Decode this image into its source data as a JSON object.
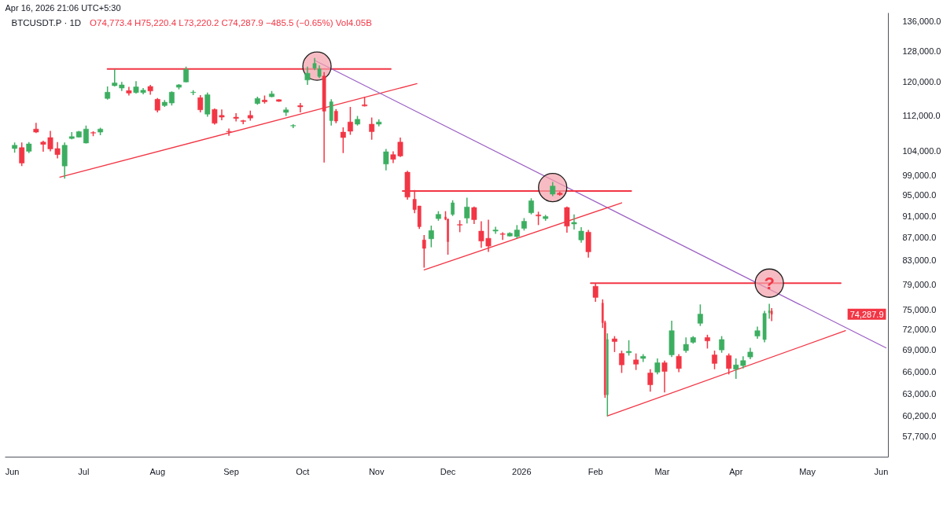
{
  "chart_data": {
    "type": "candlestick",
    "title": "BTCUSDT.P · 1D",
    "subtitle": "O74,773.4 H75,220.4 L73,220.2 C74,287.9 −485.5 (−0.65%) Vol4.05B",
    "annotations": [
      "Apr 16, 2026 21:06 UTC+5:30",
      {
        "text": "?",
        "x": "2026-04-15",
        "y": 79200
      },
      "74,287.9"
    ],
    "x": [
      "2025-06-02",
      "2025-06-05",
      "2025-06-08",
      "2025-06-11",
      "2025-06-14",
      "2025-06-17",
      "2025-06-20",
      "2025-06-23",
      "2025-06-26",
      "2025-06-29",
      "2025-07-02",
      "2025-07-05",
      "2025-07-08",
      "2025-07-11",
      "2025-07-14",
      "2025-07-17",
      "2025-07-20",
      "2025-07-23",
      "2025-07-26",
      "2025-07-29",
      "2025-08-01",
      "2025-08-04",
      "2025-08-07",
      "2025-08-10",
      "2025-08-13",
      "2025-08-16",
      "2025-08-19",
      "2025-08-22",
      "2025-08-25",
      "2025-08-28",
      "2025-08-31",
      "2025-09-03",
      "2025-09-06",
      "2025-09-09",
      "2025-09-12",
      "2025-09-15",
      "2025-09-18",
      "2025-09-21",
      "2025-09-24",
      "2025-09-27",
      "2025-09-30",
      "2025-10-03",
      "2025-10-06",
      "2025-10-08",
      "2025-10-10",
      "2025-10-13",
      "2025-10-15",
      "2025-10-18",
      "2025-10-21",
      "2025-10-24",
      "2025-10-27",
      "2025-10-30",
      "2025-11-02",
      "2025-11-05",
      "2025-11-08",
      "2025-11-11",
      "2025-11-14",
      "2025-11-17",
      "2025-11-19",
      "2025-11-21",
      "2025-11-24",
      "2025-11-27",
      "2025-11-30",
      "2025-12-01",
      "2025-12-03",
      "2025-12-06",
      "2025-12-09",
      "2025-12-12",
      "2025-12-15",
      "2025-12-18",
      "2025-12-21",
      "2025-12-24",
      "2025-12-27",
      "2025-12-30",
      "2026-01-02",
      "2026-01-05",
      "2026-01-08",
      "2026-01-11",
      "2026-01-14",
      "2026-01-17",
      "2026-01-20",
      "2026-01-23",
      "2026-01-26",
      "2026-01-29",
      "2026-02-01",
      "2026-02-04",
      "2026-02-05",
      "2026-02-06",
      "2026-02-09",
      "2026-02-12",
      "2026-02-15",
      "2026-02-18",
      "2026-02-21",
      "2026-02-24",
      "2026-02-27",
      "2026-03-02",
      "2026-03-05",
      "2026-03-08",
      "2026-03-11",
      "2026-03-14",
      "2026-03-17",
      "2026-03-20",
      "2026-03-23",
      "2026-03-26",
      "2026-03-29",
      "2026-04-01",
      "2026-04-04",
      "2026-04-07",
      "2026-04-10",
      "2026-04-13",
      "2026-04-15",
      "2026-04-16"
    ],
    "ohlc": [
      [
        104600,
        105900,
        103700,
        105300
      ],
      [
        104800,
        105900,
        100900,
        101500
      ],
      [
        104000,
        106000,
        103600,
        105600
      ],
      [
        108900,
        110300,
        108000,
        108200
      ],
      [
        106000,
        106300,
        103900,
        105500
      ],
      [
        107000,
        108500,
        104000,
        104500
      ],
      [
        104600,
        106000,
        102500,
        103300
      ],
      [
        100900,
        105900,
        98300,
        105300
      ],
      [
        106800,
        108200,
        106600,
        107200
      ],
      [
        107100,
        108500,
        107000,
        108300
      ],
      [
        105800,
        109700,
        105700,
        108900
      ],
      [
        108100,
        108400,
        107300,
        108000
      ],
      [
        108200,
        109200,
        107500,
        108900
      ],
      [
        116000,
        118900,
        115700,
        117500
      ],
      [
        119100,
        123200,
        118900,
        119800
      ],
      [
        118500,
        120000,
        117800,
        119300
      ],
      [
        117900,
        118800,
        116700,
        117300
      ],
      [
        117400,
        120200,
        117200,
        118800
      ],
      [
        117400,
        118500,
        117000,
        118000
      ],
      [
        118900,
        119300,
        116900,
        117800
      ],
      [
        115800,
        116100,
        112700,
        113200
      ],
      [
        114300,
        115600,
        114000,
        115100
      ],
      [
        114900,
        117700,
        114300,
        117500
      ],
      [
        118700,
        119500,
        118200,
        119300
      ],
      [
        120000,
        123900,
        119900,
        123200
      ],
      [
        117400,
        118000,
        116800,
        117500
      ],
      [
        116200,
        116800,
        112700,
        113300
      ],
      [
        112300,
        117400,
        111700,
        116900
      ],
      [
        113400,
        113600,
        109900,
        110200
      ],
      [
        112000,
        113400,
        110900,
        111600
      ],
      [
        108400,
        109000,
        107400,
        108300
      ],
      [
        111600,
        112500,
        110600,
        111300
      ],
      [
        110800,
        111000,
        110000,
        110600
      ],
      [
        112000,
        113100,
        110800,
        111400
      ],
      [
        114800,
        116400,
        114500,
        116000
      ],
      [
        115600,
        116700,
        114800,
        115200
      ],
      [
        116400,
        117800,
        116300,
        117100
      ],
      [
        115700,
        115800,
        115200,
        115300
      ],
      [
        112700,
        113900,
        111900,
        113300
      ],
      [
        109600,
        110000,
        109100,
        109700
      ],
      [
        114300,
        114900,
        112700,
        114000
      ],
      [
        120500,
        123900,
        119300,
        122200
      ],
      [
        123500,
        126100,
        123000,
        124700
      ],
      [
        121400,
        124200,
        121000,
        123300
      ],
      [
        121500,
        122500,
        101600,
        113000
      ],
      [
        110800,
        115800,
        109700,
        115200
      ],
      [
        113000,
        113500,
        110200,
        110700
      ],
      [
        108200,
        109300,
        103600,
        107000
      ],
      [
        110500,
        114000,
        107600,
        108400
      ],
      [
        110000,
        111900,
        109700,
        111100
      ],
      [
        114500,
        116400,
        114100,
        114200
      ],
      [
        110000,
        111500,
        106500,
        108300
      ],
      [
        110000,
        111100,
        109500,
        110500
      ],
      [
        101300,
        104500,
        100000,
        103900
      ],
      [
        103300,
        104000,
        101500,
        102300
      ],
      [
        106000,
        107000,
        102800,
        103000
      ],
      [
        99600,
        99900,
        94100,
        94600
      ],
      [
        94200,
        96000,
        91500,
        92200
      ],
      [
        92900,
        92900,
        88600,
        89000
      ],
      [
        86600,
        87500,
        81800,
        85100
      ],
      [
        86800,
        89200,
        85300,
        88300
      ],
      [
        90500,
        91900,
        90100,
        91300
      ],
      [
        90800,
        91900,
        90200,
        90400
      ],
      [
        90400,
        90500,
        84000,
        86300
      ],
      [
        91300,
        94000,
        91000,
        93500
      ],
      [
        89400,
        90200,
        88000,
        89300
      ],
      [
        90600,
        94500,
        89600,
        92700
      ],
      [
        92600,
        92800,
        89500,
        90300
      ],
      [
        88200,
        90000,
        85200,
        86400
      ],
      [
        86900,
        90300,
        84500,
        85500
      ],
      [
        88200,
        89000,
        87700,
        88400
      ],
      [
        87700,
        88000,
        86600,
        87600
      ],
      [
        87300,
        88000,
        87200,
        87800
      ],
      [
        87200,
        89300,
        86900,
        88400
      ],
      [
        88700,
        90600,
        88300,
        90000
      ],
      [
        91600,
        94400,
        91300,
        93900
      ],
      [
        91200,
        91800,
        89300,
        91000
      ],
      [
        90500,
        91200,
        90100,
        90900
      ],
      [
        95200,
        97600,
        94800,
        96800
      ],
      [
        95400,
        95700,
        94900,
        95100
      ],
      [
        92600,
        92800,
        87900,
        89100
      ],
      [
        89500,
        91300,
        88500,
        89800
      ],
      [
        86600,
        88900,
        86100,
        88200
      ],
      [
        88000,
        88400,
        83500,
        84500
      ],
      [
        78700,
        79200,
        76200,
        76900
      ],
      [
        76000,
        76600,
        72200,
        73000
      ],
      [
        73000,
        73300,
        62500,
        62900
      ],
      [
        62900,
        71400,
        60200,
        70500
      ],
      [
        70600,
        71000,
        68700,
        70200
      ],
      [
        68500,
        68900,
        65800,
        66900
      ],
      [
        68600,
        70400,
        68200,
        68800
      ],
      [
        67600,
        68500,
        66200,
        67000
      ],
      [
        67800,
        68400,
        67300,
        68100
      ],
      [
        65800,
        66300,
        63300,
        64200
      ],
      [
        65900,
        67800,
        65600,
        67200
      ],
      [
        67200,
        67500,
        63200,
        66000
      ],
      [
        68300,
        73300,
        68000,
        71800
      ],
      [
        68100,
        68400,
        65900,
        66400
      ],
      [
        68900,
        70800,
        68600,
        69800
      ],
      [
        70100,
        71000,
        69900,
        70800
      ],
      [
        72900,
        75800,
        72500,
        74300
      ],
      [
        70800,
        71200,
        69200,
        70300
      ],
      [
        68300,
        68900,
        66300,
        67100
      ],
      [
        69000,
        71000,
        68600,
        70500
      ],
      [
        68200,
        68500,
        65600,
        66400
      ],
      [
        66300,
        67800,
        65000,
        66900
      ],
      [
        66800,
        68100,
        66400,
        67500
      ],
      [
        68000,
        69300,
        67700,
        68700
      ],
      [
        71000,
        72400,
        70600,
        71800
      ],
      [
        70500,
        74800,
        70100,
        74400
      ],
      [
        74500,
        75900,
        73600,
        74800
      ],
      [
        74773.4,
        75220.4,
        73220.2,
        74287.9
      ]
    ],
    "colors": [
      "#3dae61",
      "#f23645",
      "#3dae61",
      "#f23645",
      "#f23645",
      "#f23645",
      "#f23645",
      "#3dae61",
      "#3dae61",
      "#3dae61",
      "#3dae61",
      "#f23645",
      "#3dae61",
      "#3dae61",
      "#3dae61",
      "#3dae61",
      "#f23645",
      "#3dae61",
      "#3dae61",
      "#f23645",
      "#f23645",
      "#3dae61",
      "#3dae61",
      "#3dae61",
      "#3dae61",
      "#3dae61",
      "#f23645",
      "#3dae61",
      "#f23645",
      "#f23645",
      "#f23645",
      "#f23645",
      "#f23645",
      "#f23645",
      "#3dae61",
      "#f23645",
      "#3dae61",
      "#f23645",
      "#3dae61",
      "#3dae61",
      "#f23645",
      "#3dae61",
      "#3dae61",
      "#3dae61",
      "#f23645",
      "#3dae61",
      "#f23645",
      "#f23645",
      "#f23645",
      "#3dae61",
      "#f23645",
      "#f23645",
      "#3dae61",
      "#3dae61",
      "#f23645",
      "#f23645",
      "#f23645",
      "#f23645",
      "#f23645",
      "#f23645",
      "#3dae61",
      "#3dae61",
      "#f23645",
      "#f23645",
      "#3dae61",
      "#f23645",
      "#3dae61",
      "#f23645",
      "#f23645",
      "#f23645",
      "#3dae61",
      "#f23645",
      "#3dae61",
      "#3dae61",
      "#3dae61",
      "#3dae61",
      "#f23645",
      "#3dae61",
      "#3dae61",
      "#f23645",
      "#f23645",
      "#3dae61",
      "#3dae61",
      "#f23645",
      "#f23645",
      "#f23645",
      "#f23645",
      "#3dae61",
      "#f23645",
      "#f23645",
      "#3dae61",
      "#f23645",
      "#3dae61",
      "#f23645",
      "#3dae61",
      "#f23645",
      "#3dae61",
      "#f23645",
      "#3dae61",
      "#3dae61",
      "#3dae61",
      "#f23645",
      "#f23645",
      "#3dae61",
      "#f23645",
      "#3dae61",
      "#3dae61",
      "#3dae61",
      "#3dae61",
      "#3dae61",
      "#3dae61",
      "#f23645"
    ],
    "series": [
      {
        "type": "line",
        "color": "#f23645",
        "x": [
          "2025-07-11",
          "2025-11-07"
        ],
        "values": [
          123300,
          123300
        ]
      },
      {
        "type": "line",
        "color": "#f23645",
        "x": [
          "2025-06-21",
          "2025-11-18"
        ],
        "values": [
          98600,
          119600
        ]
      },
      {
        "type": "line",
        "color": "#9c5fc4",
        "x": [
          "2025-10-06",
          "2026-06-03"
        ],
        "values": [
          125500,
          69300
        ]
      },
      {
        "type": "line",
        "color": "#f23645",
        "x": [
          "2025-11-12",
          "2026-02-16"
        ],
        "values": [
          95800,
          95800
        ]
      },
      {
        "type": "line",
        "color": "#f23645",
        "x": [
          "2025-11-21",
          "2026-02-12"
        ],
        "values": [
          81400,
          93500
        ]
      },
      {
        "type": "line",
        "color": "#f23645",
        "x": [
          "2026-01-30",
          "2026-05-15"
        ],
        "values": [
          79200,
          79200
        ]
      },
      {
        "type": "line",
        "color": "#f23645",
        "x": [
          "2026-02-06",
          "2026-05-17"
        ],
        "values": [
          60200,
          71800
        ]
      },
      {
        "type": "scatter",
        "color": "#f4a0aa",
        "marker": "circle",
        "x": [
          "2025-10-07",
          "2026-01-14",
          "2026-04-15"
        ],
        "values": [
          124000,
          96500,
          79200
        ]
      }
    ],
    "xlim": [
      "2025-05-29",
      "2026-06-04"
    ],
    "xticks": [
      {
        "value": "2025-06-01",
        "label": "Jun"
      },
      {
        "value": "2025-07-01",
        "label": "Jul"
      },
      {
        "value": "2025-08-01",
        "label": "Aug"
      },
      {
        "value": "2025-09-01",
        "label": "Sep"
      },
      {
        "value": "2025-10-01",
        "label": "Oct"
      },
      {
        "value": "2025-11-01",
        "label": "Nov"
      },
      {
        "value": "2025-12-01",
        "label": "Dec"
      },
      {
        "value": "2026-01-01",
        "label": "2026"
      },
      {
        "value": "2026-02-01",
        "label": "Feb"
      },
      {
        "value": "2026-03-01",
        "label": "Mar"
      },
      {
        "value": "2026-04-01",
        "label": "Apr"
      },
      {
        "value": "2026-05-01",
        "label": "May"
      },
      {
        "value": "2026-06-01",
        "label": "Jun"
      }
    ],
    "ylim": [
      55300,
      138400
    ],
    "yticks": [
      {
        "value": 136000,
        "label": "136,000.0"
      },
      {
        "value": 128000,
        "label": "128,000.0"
      },
      {
        "value": 120000,
        "label": "120,000.0"
      },
      {
        "value": 112000,
        "label": "112,000.0"
      },
      {
        "value": 104000,
        "label": "104,000.0"
      },
      {
        "value": 99000,
        "label": "99,000.0"
      },
      {
        "value": 95000,
        "label": "95,000.0"
      },
      {
        "value": 91000,
        "label": "91,000.0"
      },
      {
        "value": 87000,
        "label": "87,000.0"
      },
      {
        "value": 83000,
        "label": "83,000.0"
      },
      {
        "value": 79000,
        "label": "79,000.0"
      },
      {
        "value": 75000,
        "label": "75,000.0"
      },
      {
        "value": 72000,
        "label": "72,000.0"
      },
      {
        "value": 69000,
        "label": "69,000.0"
      },
      {
        "value": 66000,
        "label": "66,000.0"
      },
      {
        "value": 63000,
        "label": "63,000.0"
      },
      {
        "value": 60200,
        "label": "60,200.0"
      },
      {
        "value": 57700,
        "label": "57,700.0"
      }
    ],
    "log": true,
    "grid": false
  }
}
